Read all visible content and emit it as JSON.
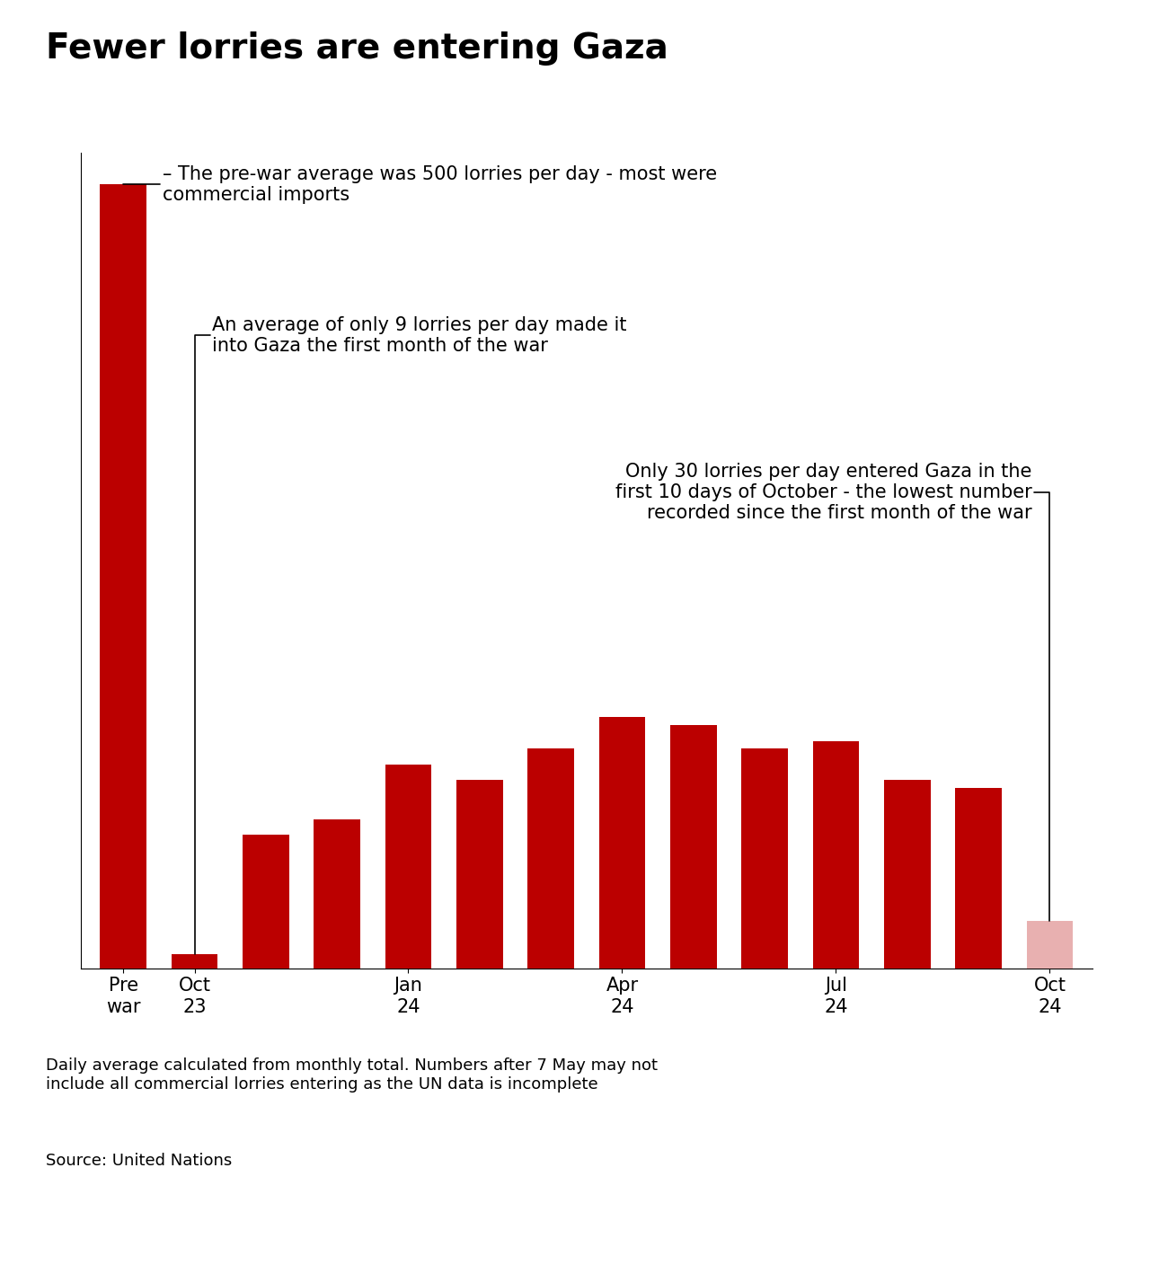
{
  "chart_data": {
    "type": "bar",
    "title": "Fewer lorries are entering Gaza",
    "categories": [
      "Pre\nwar",
      "Oct\n23",
      null,
      null,
      "Jan\n24",
      null,
      null,
      "Apr\n24",
      null,
      null,
      "Jul\n24",
      null,
      null,
      "Oct\n24"
    ],
    "values": [
      500,
      9,
      85,
      95,
      130,
      120,
      140,
      160,
      155,
      140,
      145,
      120,
      115,
      30
    ],
    "colors": [
      "#bb0000",
      "#bb0000",
      "#bb0000",
      "#bb0000",
      "#bb0000",
      "#bb0000",
      "#bb0000",
      "#bb0000",
      "#bb0000",
      "#bb0000",
      "#bb0000",
      "#bb0000",
      "#bb0000",
      "#e8b0b0"
    ],
    "ylim": [
      0,
      520
    ],
    "tick_labels": "x",
    "grid": false,
    "annotations": [
      "– The pre-war average was 500 lorries per day - most were\ncommercial imports",
      "An average of only 9 lorries per day made it\ninto Gaza the first month of the war",
      "Only 30 lorries per day entered Gaza in the\nfirst 10 days of October - the lowest number\nrecorded since the first month of the war"
    ],
    "footnote": "Daily average calculated from monthly total. Numbers after 7 May may not\ninclude all commercial lorries entering as the UN data is incomplete",
    "source": "Source: United Nations"
  }
}
